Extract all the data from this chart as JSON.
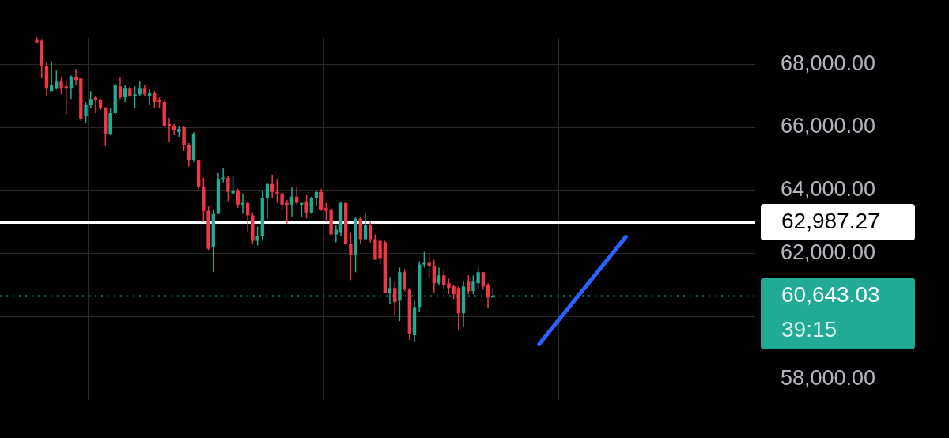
{
  "chart_data": {
    "type": "candlestick",
    "categories": [
      null,
      null,
      null,
      null,
      null,
      null,
      null,
      null,
      null,
      null,
      null,
      null,
      null,
      null,
      null,
      null,
      null,
      null,
      null,
      null,
      null,
      null,
      null,
      null,
      null,
      null,
      null,
      null,
      null,
      null,
      null,
      null,
      null,
      null,
      null,
      null,
      null,
      null,
      null,
      null,
      null,
      null,
      null,
      null,
      null,
      null,
      null,
      null,
      null,
      null,
      null,
      null,
      null,
      null,
      null,
      null,
      null,
      null,
      null,
      null,
      null,
      null,
      null,
      null,
      null,
      null,
      null,
      null,
      null,
      null,
      null,
      null,
      null,
      null,
      null,
      null,
      null,
      null,
      null,
      null,
      null,
      null,
      null,
      null,
      null,
      null,
      null,
      null,
      null,
      null,
      null,
      null,
      null,
      null,
      null,
      null,
      null,
      null,
      null,
      null,
      null,
      null,
      null,
      null,
      null,
      null,
      null,
      null,
      null,
      null,
      null,
      null,
      null,
      null,
      null,
      null,
      null,
      null,
      null,
      null,
      null,
      null,
      null,
      null,
      null,
      null,
      null,
      null,
      null,
      null,
      null,
      null,
      null,
      null,
      null,
      null,
      null,
      null,
      null,
      null,
      null,
      null,
      null,
      null,
      null,
      null,
      null,
      null,
      null,
      null,
      null,
      null,
      null,
      null
    ],
    "ohlc": [
      null,
      null,
      null,
      null,
      null,
      null,
      null,
      [
        68800,
        68850,
        68650,
        68700
      ],
      [
        68750,
        68800,
        67550,
        67950
      ],
      [
        67950,
        68050,
        67000,
        67250
      ],
      [
        67150,
        68100,
        67150,
        67350
      ],
      [
        67250,
        67800,
        67200,
        67450
      ],
      [
        67450,
        67600,
        67050,
        67250
      ],
      [
        67300,
        67450,
        66400,
        67250
      ],
      [
        67250,
        67650,
        66900,
        67600
      ],
      [
        67600,
        67850,
        67350,
        67500
      ],
      [
        67550,
        67550,
        66200,
        66250
      ],
      [
        66350,
        66800,
        66150,
        66700
      ],
      [
        66700,
        67150,
        66600,
        66900
      ],
      [
        66950,
        67000,
        66450,
        66850
      ],
      [
        66850,
        66900,
        66550,
        66600
      ],
      [
        66600,
        66650,
        65400,
        65800
      ],
      [
        65800,
        66600,
        65750,
        66450
      ],
      [
        66450,
        67400,
        66400,
        67350
      ],
      [
        67300,
        67600,
        66900,
        66950
      ],
      [
        66950,
        67350,
        66800,
        67250
      ],
      [
        67250,
        67300,
        66950,
        67000
      ],
      [
        67000,
        67300,
        66600,
        67050
      ],
      [
        67050,
        67450,
        67000,
        67250
      ],
      [
        67250,
        67350,
        67000,
        67050
      ],
      [
        67000,
        67200,
        66700,
        67100
      ],
      [
        67100,
        67150,
        66600,
        66800
      ],
      [
        66850,
        66950,
        66600,
        66800
      ],
      [
        66800,
        66850,
        66000,
        66050
      ],
      [
        66100,
        66300,
        65550,
        66050
      ],
      [
        66050,
        66100,
        65750,
        65900
      ],
      [
        65850,
        66050,
        65700,
        65950
      ],
      [
        66000,
        66050,
        65250,
        65450
      ],
      [
        65450,
        65500,
        64750,
        64950
      ],
      [
        64950,
        65850,
        64900,
        65800
      ],
      [
        64950,
        64950,
        64050,
        64100
      ],
      [
        64100,
        64400,
        63000,
        63350
      ],
      [
        63350,
        63500,
        62100,
        62150
      ],
      [
        62200,
        63400,
        61400,
        63250
      ],
      [
        63250,
        64550,
        63250,
        64350
      ],
      [
        64350,
        64700,
        64250,
        64400
      ],
      [
        64400,
        64450,
        63650,
        63950
      ],
      [
        63900,
        64450,
        63900,
        64000
      ],
      [
        64000,
        64050,
        63450,
        63550
      ],
      [
        63550,
        63900,
        63250,
        63600
      ],
      [
        63600,
        63650,
        62700,
        63200
      ],
      [
        63200,
        63300,
        62300,
        62400
      ],
      [
        62400,
        62850,
        62250,
        62550
      ],
      [
        62550,
        64000,
        62400,
        63750
      ],
      [
        63750,
        64250,
        63100,
        64200
      ],
      [
        64200,
        64500,
        63750,
        63950
      ],
      [
        63950,
        64350,
        63600,
        63900
      ],
      [
        63900,
        63950,
        63400,
        63550
      ],
      [
        63600,
        63700,
        62950,
        63550
      ],
      [
        63550,
        64100,
        63150,
        63800
      ],
      [
        63800,
        64100,
        63550,
        63600
      ],
      [
        63550,
        63600,
        63150,
        63600
      ],
      [
        63650,
        63850,
        63100,
        63300
      ],
      [
        63300,
        63800,
        63250,
        63750
      ],
      [
        63750,
        64000,
        63500,
        63950
      ],
      [
        63950,
        64050,
        63350,
        63400
      ],
      [
        63450,
        63600,
        63000,
        63350
      ],
      [
        63400,
        63450,
        62550,
        62600
      ],
      [
        62600,
        62900,
        62350,
        62750
      ],
      [
        62650,
        63650,
        62550,
        63600
      ],
      [
        63600,
        63650,
        62250,
        62300
      ],
      [
        62300,
        62650,
        61150,
        61950
      ],
      [
        61950,
        63150,
        61400,
        63100
      ],
      [
        63100,
        63150,
        62300,
        62450
      ],
      [
        62450,
        63250,
        62450,
        62900
      ],
      [
        62900,
        63000,
        62350,
        62450
      ],
      [
        62450,
        62600,
        61800,
        61800
      ],
      [
        62400,
        62450,
        61650,
        61850
      ],
      [
        62350,
        62400,
        60750,
        60750
      ],
      [
        60750,
        61250,
        60400,
        60900
      ],
      [
        60900,
        61100,
        60050,
        60450
      ],
      [
        60500,
        61550,
        59850,
        61400
      ],
      [
        61400,
        61500,
        60800,
        60850
      ],
      [
        60850,
        60900,
        59250,
        59450
      ],
      [
        59400,
        60500,
        59200,
        60300
      ],
      [
        60300,
        61750,
        60150,
        61650
      ],
      [
        61650,
        62050,
        61550,
        61700
      ],
      [
        61700,
        62000,
        61250,
        61600
      ],
      [
        61600,
        61800,
        60750,
        61050
      ],
      [
        61050,
        61550,
        61000,
        61300
      ],
      [
        61300,
        61450,
        60850,
        61000
      ],
      [
        61050,
        61200,
        60700,
        60900
      ],
      [
        60950,
        61000,
        60550,
        60700
      ],
      [
        60900,
        60950,
        59550,
        60100
      ],
      [
        60100,
        61100,
        59650,
        60950
      ],
      [
        61100,
        61300,
        60700,
        60800
      ],
      [
        60800,
        61300,
        60700,
        61100
      ],
      [
        61050,
        61550,
        60900,
        61400
      ],
      [
        61400,
        61400,
        60850,
        60950
      ],
      [
        61000,
        61050,
        60250,
        60600
      ],
      [
        60600,
        60900,
        60600,
        60643.03
      ],
      null,
      null,
      null,
      null,
      null,
      null,
      null,
      null,
      null,
      null,
      null,
      null,
      null,
      null,
      null,
      null,
      null,
      null,
      null,
      null,
      null,
      null,
      null,
      null,
      null,
      null,
      null,
      null,
      null,
      null,
      null,
      null,
      null,
      null,
      null,
      null,
      null,
      null,
      null,
      null,
      null,
      null,
      null,
      null,
      null,
      null,
      null,
      null,
      null,
      null,
      null,
      null,
      null
    ],
    "ylim": [
      57350,
      68830
    ],
    "yticks": [
      {
        "value": 58000,
        "label": "58,000.00"
      },
      {
        "value": 60000,
        "label": null
      },
      {
        "value": 62000,
        "label": "62,000.00"
      },
      {
        "value": 64000,
        "label": "64,000.00"
      },
      {
        "value": 66000,
        "label": "66,000.00"
      },
      {
        "value": 68000,
        "label": "68,000.00"
      }
    ],
    "grid": true,
    "tick_labels": "y",
    "ref_lines": [
      {
        "axis": "y",
        "value": 62987.27,
        "label": "62,987.27",
        "color": "#ffffff",
        "line_style": "solid"
      },
      {
        "axis": "y",
        "value": 60643.03,
        "label": "60,643.03",
        "color": "#22ab94",
        "line_style": "dotted"
      }
    ],
    "annotations": [
      "39:15"
    ]
  }
}
